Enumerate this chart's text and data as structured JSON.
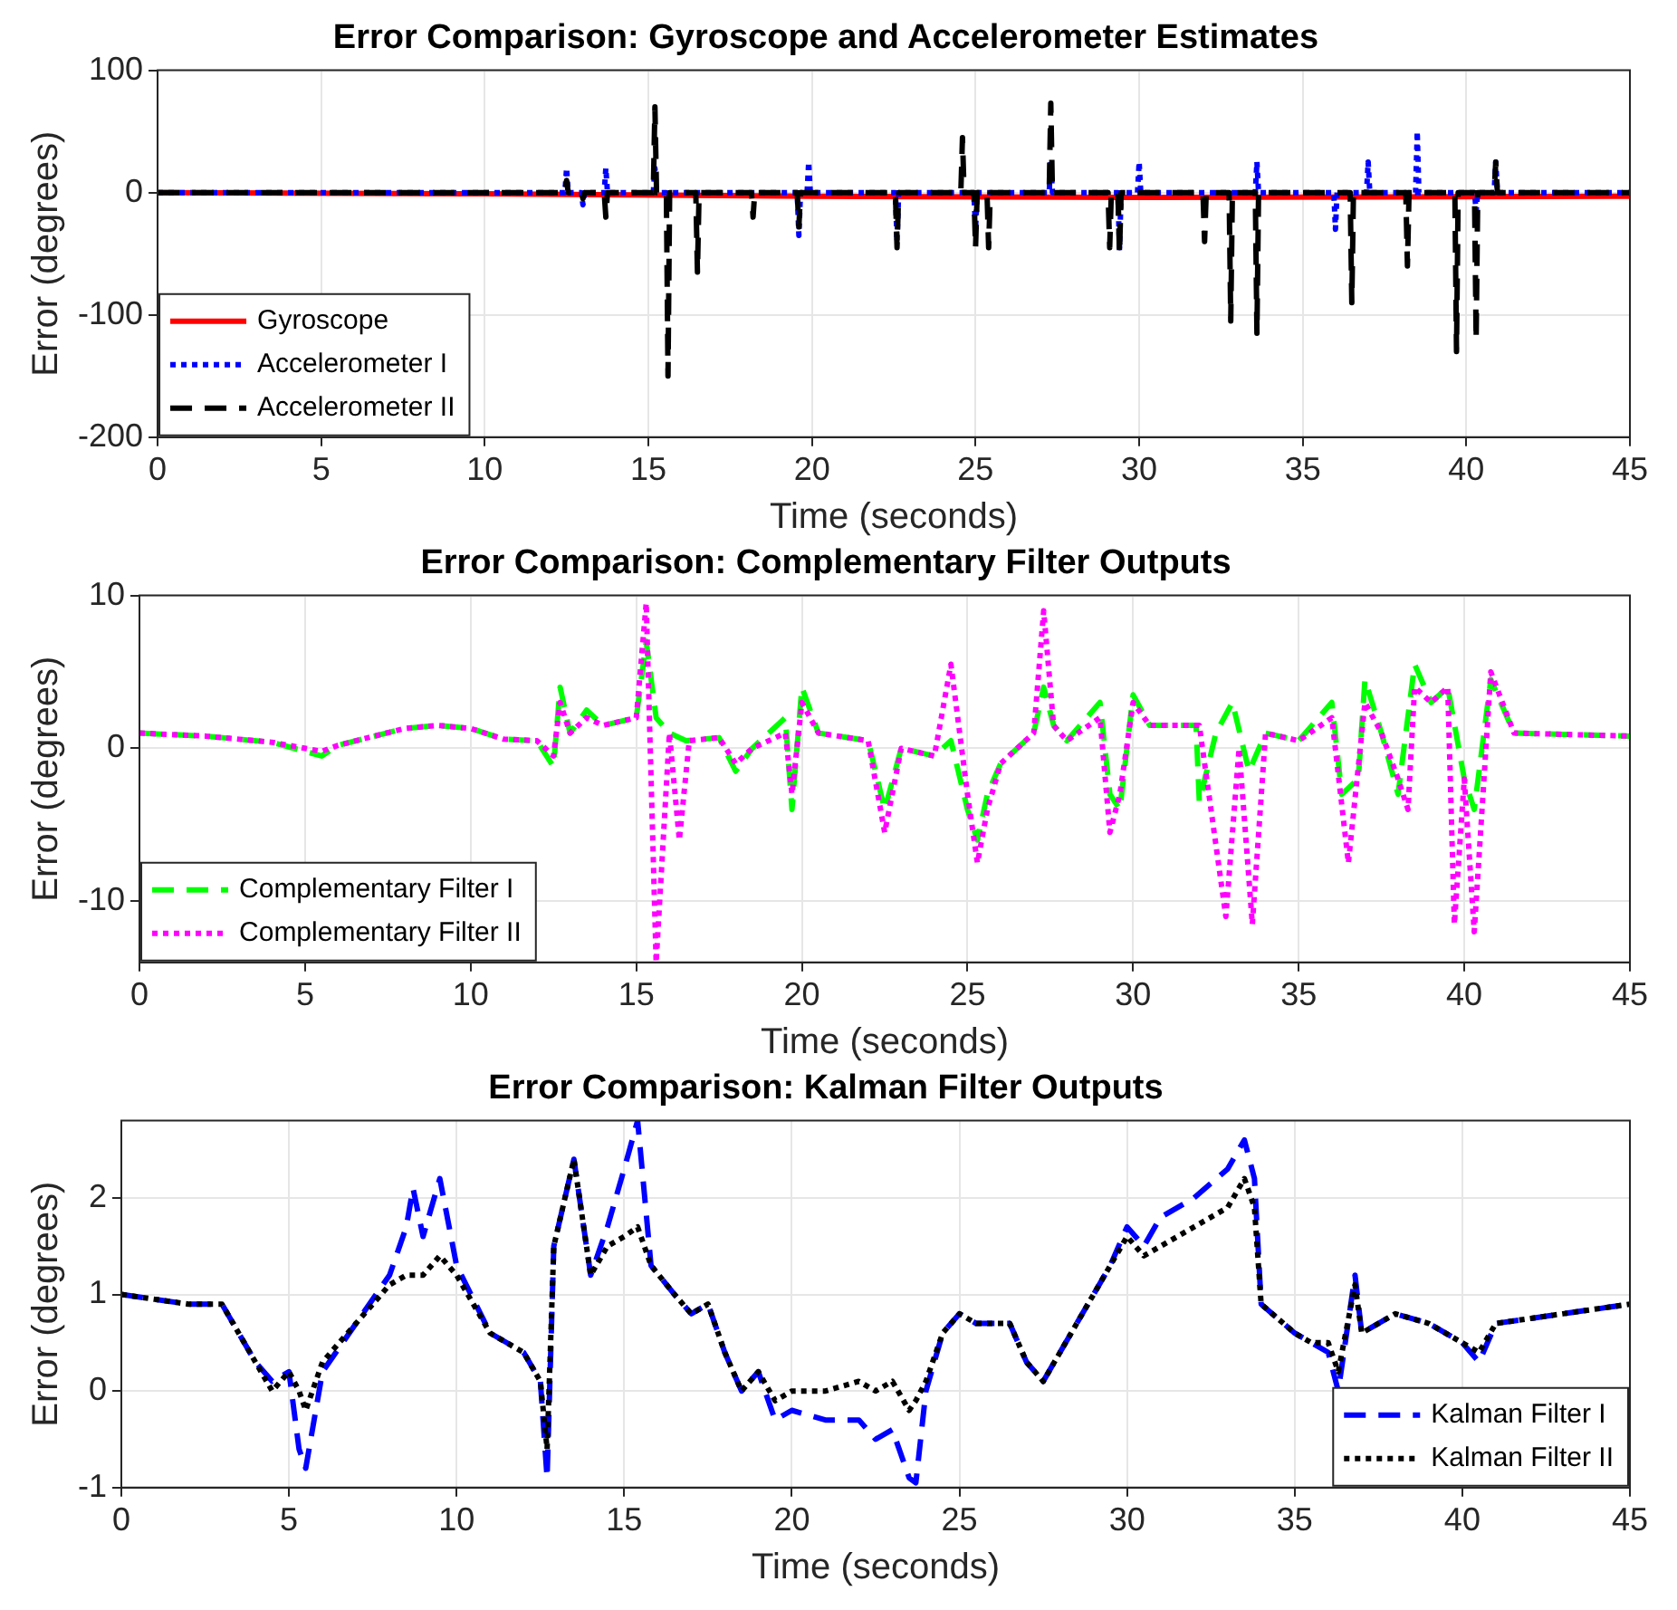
{
  "chart_data": [
    {
      "type": "line",
      "title": "Error Comparison: Gyroscope and Accelerometer Estimates",
      "xlabel": "Time (seconds)",
      "ylabel": "Error (degrees)",
      "xlim": [
        0,
        45
      ],
      "xticks": [
        0,
        5,
        10,
        15,
        20,
        25,
        30,
        35,
        40,
        45
      ],
      "ylim": [
        -200,
        100
      ],
      "yticks": [
        -200,
        -100,
        0,
        100
      ],
      "grid": true,
      "legend": "bottom left",
      "series": [
        {
          "name": "Gyroscope",
          "color": "#ff0000",
          "line_style": "solid",
          "x": [
            0,
            10,
            20,
            30,
            45
          ],
          "values": [
            0,
            -1,
            -3,
            -4,
            -3
          ]
        },
        {
          "name": "Accelerometer I",
          "color": "#0000ff",
          "line_style": "dotted",
          "x": [
            0,
            12.45,
            12.5,
            12.55,
            12.95,
            13,
            13.05,
            13.65,
            13.7,
            13.75,
            15.15,
            15.2,
            15.25,
            15.55,
            15.6,
            15.65,
            19.55,
            19.6,
            19.65,
            19.85,
            19.9,
            19.95,
            22.55,
            22.6,
            22.65,
            24.95,
            25,
            25.05,
            27.25,
            27.3,
            27.35,
            29.35,
            29.4,
            29.45,
            29.95,
            30,
            30.05,
            33.55,
            33.6,
            33.65,
            35.95,
            36,
            36.05,
            36.95,
            37,
            37.05,
            38.45,
            38.5,
            38.55,
            40.25,
            40.3,
            40.35,
            40.85,
            40.9,
            40.95,
            45
          ],
          "values": [
            0,
            0,
            20,
            0,
            0,
            -10,
            0,
            0,
            20,
            0,
            0,
            20,
            0,
            0,
            -10,
            0,
            0,
            -35,
            0,
            0,
            25,
            0,
            0,
            -40,
            0,
            0,
            -30,
            0,
            0,
            25,
            0,
            0,
            -45,
            0,
            0,
            25,
            0,
            0,
            25,
            0,
            0,
            -30,
            0,
            0,
            25,
            0,
            0,
            50,
            0,
            0,
            -15,
            0,
            0,
            25,
            0,
            0
          ]
        },
        {
          "name": "Accelerometer II",
          "color": "#000000",
          "line_style": "dashed",
          "x": [
            0,
            12.45,
            12.5,
            12.55,
            12.95,
            13,
            13.05,
            13.65,
            13.7,
            13.75,
            15.15,
            15.2,
            15.25,
            15.55,
            15.6,
            15.65,
            16.45,
            16.5,
            16.55,
            18.15,
            18.2,
            18.25,
            19.55,
            19.6,
            19.65,
            22.55,
            22.6,
            22.65,
            24.55,
            24.6,
            24.65,
            24.95,
            25,
            25.05,
            25.35,
            25.4,
            25.45,
            27.25,
            27.3,
            27.35,
            29.05,
            29.1,
            29.15,
            29.35,
            29.4,
            29.45,
            31.95,
            32,
            32.05,
            32.75,
            32.8,
            32.85,
            33.55,
            33.6,
            33.65,
            36.45,
            36.5,
            36.55,
            38.15,
            38.2,
            38.25,
            39.65,
            39.7,
            39.75,
            40.25,
            40.3,
            40.35,
            40.85,
            40.9,
            40.95,
            45
          ],
          "values": [
            0,
            0,
            10,
            0,
            0,
            -5,
            0,
            0,
            -20,
            0,
            0,
            70,
            0,
            0,
            -150,
            0,
            0,
            -65,
            0,
            0,
            -20,
            0,
            0,
            -28,
            0,
            0,
            -45,
            0,
            0,
            45,
            0,
            0,
            -45,
            0,
            0,
            -45,
            0,
            0,
            73,
            0,
            0,
            -45,
            0,
            0,
            -50,
            0,
            0,
            -40,
            0,
            0,
            -105,
            0,
            0,
            -115,
            0,
            0,
            -90,
            0,
            0,
            -60,
            0,
            0,
            -130,
            0,
            0,
            -120,
            0,
            0,
            25,
            0,
            0
          ]
        }
      ]
    },
    {
      "type": "line",
      "title": "Error Comparison: Complementary Filter Outputs",
      "xlabel": "Time (seconds)",
      "ylabel": "Error (degrees)",
      "xlim": [
        0,
        45
      ],
      "xticks": [
        0,
        5,
        10,
        15,
        20,
        25,
        30,
        35,
        40,
        45
      ],
      "ylim": [
        -14,
        10
      ],
      "yticks": [
        -10,
        0,
        10
      ],
      "grid": true,
      "legend": "bottom left",
      "series": [
        {
          "name": "Complementary Filter I",
          "color": "#00ff00",
          "line_style": "dashed",
          "x": [
            0,
            2,
            4,
            5.5,
            6,
            8,
            9,
            10,
            11,
            12,
            12.5,
            12.7,
            13,
            13.5,
            14,
            15,
            15.3,
            15.6,
            16,
            16.5,
            17.5,
            18,
            18.5,
            19.5,
            19.7,
            20,
            20.5,
            22,
            22.5,
            23,
            24,
            24.5,
            25,
            25.3,
            25.6,
            26,
            27,
            27.3,
            27.6,
            28,
            29,
            29.3,
            29.6,
            30,
            30.5,
            31.9,
            32,
            32.5,
            33,
            33.5,
            34,
            35,
            36,
            36.3,
            36.8,
            37,
            37.5,
            38,
            38.5,
            39,
            39.5,
            40,
            40.3,
            40.8,
            41.5,
            45
          ],
          "values": [
            1,
            0.8,
            0.4,
            -0.5,
            0.2,
            1.3,
            1.5,
            1.3,
            0.6,
            0.5,
            -1.2,
            4,
            1,
            2.5,
            1.5,
            2,
            7,
            2,
            1,
            0.5,
            0.7,
            -1.5,
            0,
            2,
            -4,
            4,
            1,
            0.5,
            -4,
            0,
            -0.5,
            0.5,
            -4,
            -6,
            -3,
            -1,
            1,
            4,
            1.5,
            0.5,
            3,
            -3,
            -4,
            3.5,
            1.5,
            1.5,
            -3.5,
            1,
            3,
            -1.5,
            1,
            0.5,
            3,
            -3,
            -2,
            4.5,
            1,
            -3,
            5.5,
            3,
            4,
            -2,
            -4,
            4.5,
            1,
            0.8
          ]
        },
        {
          "name": "Complementary Filter II",
          "color": "#ff00ff",
          "line_style": "dotted",
          "x": [
            0,
            2,
            4,
            5.5,
            6,
            8,
            9,
            10,
            11,
            12,
            12.5,
            12.7,
            13,
            13.5,
            14,
            15,
            15.3,
            15.6,
            16,
            16.3,
            16.6,
            17.5,
            18,
            18.5,
            19.5,
            19.7,
            20,
            20.5,
            22,
            22.5,
            23,
            24,
            24.5,
            25,
            25.3,
            25.6,
            26,
            27,
            27.3,
            27.6,
            28,
            29,
            29.3,
            29.6,
            30,
            30.5,
            32,
            32.8,
            33.2,
            33.6,
            34,
            35,
            36,
            36.5,
            37,
            37.5,
            38,
            38.3,
            38.5,
            39,
            39.5,
            39.7,
            40,
            40.3,
            40.8,
            41.5,
            45
          ],
          "values": [
            1,
            0.8,
            0.4,
            -0.2,
            0.2,
            1.3,
            1.5,
            1.3,
            0.6,
            0.5,
            -0.5,
            3,
            1,
            2,
            1.5,
            2,
            9.5,
            -14,
            1,
            -6,
            0.5,
            0.7,
            -1,
            0,
            1,
            -3,
            3,
            1,
            0.5,
            -5.5,
            0,
            -0.5,
            5.5,
            -3,
            -7.5,
            -4,
            -1,
            1,
            9,
            1.5,
            0.5,
            2,
            -5.5,
            -3,
            3,
            1.5,
            1.5,
            -11,
            0,
            -11.5,
            1,
            0.5,
            2,
            -7.5,
            3,
            1,
            -2,
            -4,
            4,
            3,
            4,
            -11.5,
            -2,
            -12,
            5,
            1,
            0.8
          ]
        }
      ]
    },
    {
      "type": "line",
      "title": "Error Comparison: Kalman Filter Outputs",
      "xlabel": "Time (seconds)",
      "ylabel": "Error (degrees)",
      "xlim": [
        0,
        45
      ],
      "xticks": [
        0,
        5,
        10,
        15,
        20,
        25,
        30,
        35,
        40,
        45
      ],
      "ylim": [
        -1,
        2.8
      ],
      "yticks": [
        -1,
        0,
        1,
        2
      ],
      "grid": true,
      "legend": "bottom right",
      "series": [
        {
          "name": "Kalman Filter I",
          "color": "#0000ff",
          "line_style": "dashed",
          "x": [
            0,
            1,
            2,
            3,
            3.5,
            4,
            4.5,
            5,
            5.3,
            5.5,
            6,
            7,
            8,
            8.5,
            8.7,
            9,
            9.5,
            10,
            11,
            12,
            12.5,
            12.7,
            12.9,
            13.5,
            14,
            14.5,
            15,
            15.4,
            15.8,
            16.5,
            17,
            17.5,
            18,
            18.5,
            19,
            19.5,
            20,
            21,
            22,
            22.5,
            23,
            23.5,
            23.7,
            24,
            24.5,
            25,
            25.5,
            26.5,
            27,
            27.5,
            28,
            29,
            29.5,
            30,
            30.5,
            31,
            32,
            33,
            33.5,
            33.8,
            34,
            35,
            35.5,
            36,
            36.3,
            36.8,
            37,
            38,
            39,
            40,
            40.5,
            41,
            42,
            43,
            44,
            45
          ],
          "values": [
            1,
            0.95,
            0.9,
            0.9,
            0.6,
            0.3,
            0.1,
            0.2,
            -0.6,
            -0.8,
            0.2,
            0.7,
            1.2,
            1.7,
            2.1,
            1.6,
            2.2,
            1.3,
            0.6,
            0.4,
            0.1,
            -0.9,
            1.5,
            2.4,
            1.2,
            1.7,
            2.3,
            2.8,
            1.3,
            1,
            0.8,
            0.9,
            0.4,
            0,
            0.2,
            -0.3,
            -0.2,
            -0.3,
            -0.3,
            -0.5,
            -0.4,
            -0.9,
            -0.95,
            0,
            0.6,
            0.8,
            0.7,
            0.7,
            0.3,
            0.1,
            0.4,
            1,
            1.3,
            1.7,
            1.5,
            1.8,
            2,
            2.3,
            2.6,
            2.2,
            0.9,
            0.6,
            0.5,
            0.4,
            0,
            1.2,
            0.6,
            0.8,
            0.7,
            0.5,
            0.3,
            0.7,
            0.75,
            0.8,
            0.85,
            0.9
          ]
        },
        {
          "name": "Kalman Filter II",
          "color": "#000000",
          "line_style": "dotted",
          "x": [
            0,
            1,
            2,
            3,
            3.5,
            4,
            4.5,
            5,
            5.3,
            5.5,
            6,
            7,
            8,
            8.5,
            8.7,
            9,
            9.5,
            10,
            11,
            12,
            12.5,
            12.7,
            12.9,
            13.5,
            14,
            14.5,
            15,
            15.4,
            15.8,
            16.5,
            17,
            17.5,
            18,
            18.5,
            19,
            19.5,
            20,
            21,
            22,
            22.5,
            23,
            23.5,
            23.7,
            24,
            24.5,
            25,
            25.5,
            26.5,
            27,
            27.5,
            28,
            29,
            29.5,
            30,
            30.5,
            31,
            32,
            33,
            33.5,
            33.8,
            34,
            35,
            35.5,
            36,
            36.3,
            36.8,
            37,
            38,
            39,
            40,
            40.5,
            41,
            42,
            43,
            44,
            45
          ],
          "values": [
            1,
            0.95,
            0.9,
            0.9,
            0.6,
            0.3,
            0,
            0.2,
            0,
            -0.2,
            0.3,
            0.7,
            1.1,
            1.2,
            1.2,
            1.2,
            1.4,
            1.2,
            0.6,
            0.4,
            0.1,
            -0.6,
            1.5,
            2.4,
            1.2,
            1.5,
            1.6,
            1.7,
            1.3,
            1,
            0.8,
            0.9,
            0.4,
            0,
            0.2,
            -0.1,
            0,
            0,
            0.1,
            0,
            0.1,
            -0.2,
            -0.1,
            0.1,
            0.6,
            0.8,
            0.7,
            0.7,
            0.3,
            0.1,
            0.4,
            1,
            1.3,
            1.6,
            1.4,
            1.5,
            1.7,
            1.9,
            2.2,
            1.9,
            0.9,
            0.6,
            0.5,
            0.5,
            0.2,
            1.1,
            0.6,
            0.8,
            0.7,
            0.5,
            0.4,
            0.7,
            0.75,
            0.8,
            0.85,
            0.9
          ]
        }
      ]
    }
  ]
}
